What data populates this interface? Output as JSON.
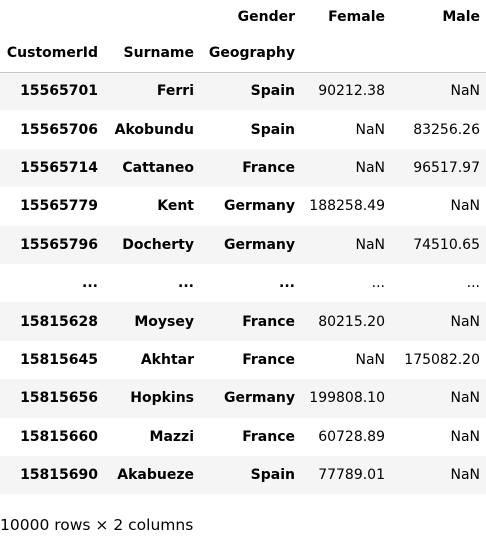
{
  "columns_header": {
    "level0_name": "Gender",
    "col_female": "Female",
    "col_male": "Male"
  },
  "index_header": {
    "customer_id": "CustomerId",
    "surname": "Surname",
    "geography": "Geography"
  },
  "rows": [
    {
      "customer_id": "15565701",
      "surname": "Ferri",
      "geography": "Spain",
      "female": "90212.38",
      "male": "NaN"
    },
    {
      "customer_id": "15565706",
      "surname": "Akobundu",
      "geography": "Spain",
      "female": "NaN",
      "male": "83256.26"
    },
    {
      "customer_id": "15565714",
      "surname": "Cattaneo",
      "geography": "France",
      "female": "NaN",
      "male": "96517.97"
    },
    {
      "customer_id": "15565779",
      "surname": "Kent",
      "geography": "Germany",
      "female": "188258.49",
      "male": "NaN"
    },
    {
      "customer_id": "15565796",
      "surname": "Docherty",
      "geography": "Germany",
      "female": "NaN",
      "male": "74510.65"
    },
    {
      "customer_id": "...",
      "surname": "...",
      "geography": "...",
      "female": "...",
      "male": "..."
    },
    {
      "customer_id": "15815628",
      "surname": "Moysey",
      "geography": "France",
      "female": "80215.20",
      "male": "NaN"
    },
    {
      "customer_id": "15815645",
      "surname": "Akhtar",
      "geography": "France",
      "female": "NaN",
      "male": "175082.20"
    },
    {
      "customer_id": "15815656",
      "surname": "Hopkins",
      "geography": "Germany",
      "female": "199808.10",
      "male": "NaN"
    },
    {
      "customer_id": "15815660",
      "surname": "Mazzi",
      "geography": "France",
      "female": "60728.89",
      "male": "NaN"
    },
    {
      "customer_id": "15815690",
      "surname": "Akabueze",
      "geography": "Spain",
      "female": "77789.01",
      "male": "NaN"
    }
  ],
  "shape_text": "10000 rows × 2 columns"
}
